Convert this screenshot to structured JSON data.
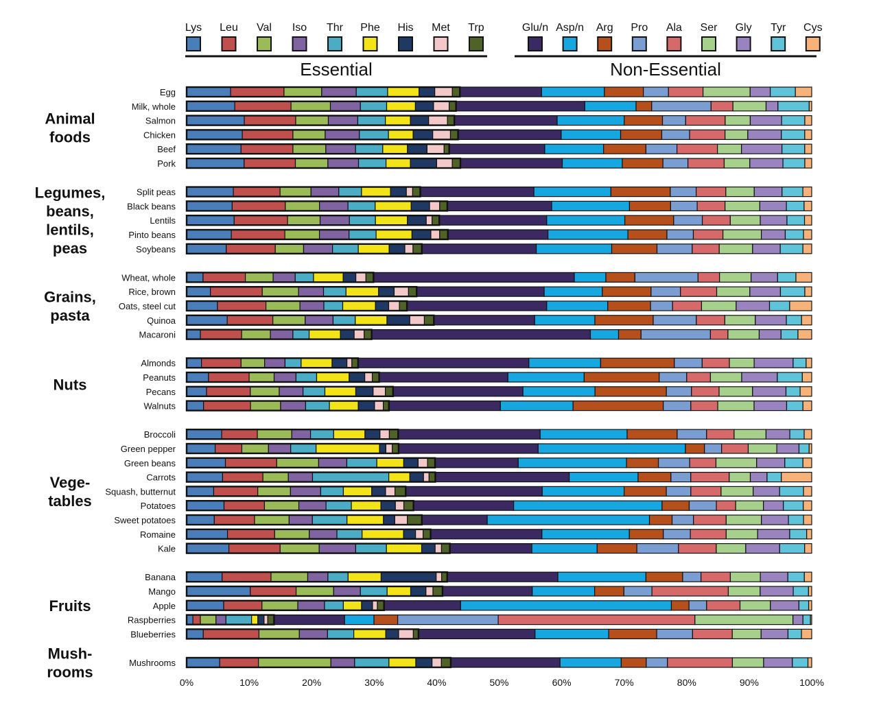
{
  "chart_data": {
    "type": "bar",
    "orientation": "horizontal",
    "stacked": true,
    "normalized_percent": true,
    "grid": false,
    "legend_placement": "top",
    "xlim": [
      0,
      100
    ],
    "x_ticks": [
      "0%",
      "10%",
      "20%",
      "30%",
      "40%",
      "50%",
      "60%",
      "70%",
      "80%",
      "90%",
      "100%"
    ],
    "legend_groups": [
      {
        "label": "Essential",
        "series": [
          "Lys",
          "Leu",
          "Val",
          "Iso",
          "Thr",
          "Phe",
          "His",
          "Met",
          "Trp"
        ]
      },
      {
        "label": "Non-Essential",
        "series": [
          "Glu/n",
          "Asp/n",
          "Arg",
          "Pro",
          "Ala",
          "Ser",
          "Gly",
          "Tyr",
          "Cys"
        ]
      }
    ],
    "series": [
      {
        "name": "Lys",
        "color": "#4a7ebb"
      },
      {
        "name": "Leu",
        "color": "#c0504d"
      },
      {
        "name": "Val",
        "color": "#9bbb59"
      },
      {
        "name": "Iso",
        "color": "#8064a2"
      },
      {
        "name": "Thr",
        "color": "#4bacc6"
      },
      {
        "name": "Phe",
        "color": "#f2e418"
      },
      {
        "name": "His",
        "color": "#1f3864"
      },
      {
        "name": "Met",
        "color": "#f2c8c8"
      },
      {
        "name": "Trp",
        "color": "#4f6228"
      },
      {
        "name": "Glu/n",
        "color": "#3b2a62"
      },
      {
        "name": "Asp/n",
        "color": "#16a6e0"
      },
      {
        "name": "Arg",
        "color": "#b5501c"
      },
      {
        "name": "Pro",
        "color": "#7a9dd2"
      },
      {
        "name": "Ala",
        "color": "#d66a6a"
      },
      {
        "name": "Ser",
        "color": "#a8d08d"
      },
      {
        "name": "Gly",
        "color": "#9a84bf"
      },
      {
        "name": "Tyr",
        "color": "#5fc3d9"
      },
      {
        "name": "Cys",
        "color": "#f7b27a"
      }
    ],
    "groups": [
      {
        "label": "Animal\nfoods",
        "items": [
          {
            "name": "Egg",
            "values": [
              7,
              8.5,
              6,
              5.5,
              5,
              5,
              2.5,
              2.8,
              1.2,
              13,
              10,
              6.2,
              4,
              5.5,
              7.5,
              3.2,
              4,
              2.6
            ]
          },
          {
            "name": "Milk, whole",
            "values": [
              7.7,
              9,
              6.3,
              4.8,
              4.2,
              4.6,
              2.9,
              2.5,
              1.1,
              20.6,
              8.2,
              2.5,
              9.5,
              3.5,
              5.3,
              1.9,
              5,
              0.4
            ]
          },
          {
            "name": "Salmon",
            "values": [
              9.2,
              8.2,
              5.2,
              4.7,
              4.4,
              4,
              2.9,
              3,
              1.1,
              16.4,
              10.7,
              6.1,
              3.7,
              6.3,
              4,
              5,
              3.7,
              1.1
            ]
          },
          {
            "name": "Chicken",
            "values": [
              8.8,
              8,
              5.1,
              5.4,
              4.6,
              3.9,
              3.1,
              2.8,
              1.2,
              16.3,
              9.4,
              6.5,
              4.4,
              5.6,
              3.6,
              5.3,
              3.7,
              1.1
            ]
          },
          {
            "name": "Beef",
            "values": [
              8.6,
              8.2,
              5.2,
              4.7,
              4.3,
              3.9,
              3.1,
              2.7,
              0.8,
              15.1,
              9.3,
              6.7,
              4.9,
              6.4,
              3.8,
              6.4,
              3.6,
              1.1
            ]
          },
          {
            "name": "Pork",
            "values": [
              9.2,
              8.2,
              5.2,
              4.9,
              4.4,
              3.9,
              4.2,
              2.5,
              1.3,
              16.3,
              9.6,
              6.5,
              4,
              5.8,
              4.1,
              5.3,
              3.5,
              1.1
            ]
          }
        ]
      },
      {
        "label": "Legumes,\nbeans,\nlentils,\npeas",
        "items": [
          {
            "name": "Split peas",
            "values": [
              7.4,
              7.4,
              4.9,
              4.4,
              3.6,
              4.6,
              2.5,
              1,
              1.2,
              18,
              12.2,
              9.4,
              4.1,
              4.7,
              4.5,
              4.4,
              3.3,
              1.4
            ]
          },
          {
            "name": "Black beans",
            "values": [
              7.2,
              8.4,
              5.4,
              4.5,
              4.3,
              5.7,
              2.9,
              1.6,
              1.2,
              16.5,
              12.3,
              6.5,
              4.2,
              4.4,
              5.5,
              4.2,
              2.8,
              1.2
            ]
          },
          {
            "name": "Lentils",
            "values": [
              7.3,
              8.2,
              5,
              4.5,
              4,
              4.9,
              2.9,
              0.9,
              1.1,
              16.5,
              12,
              7.5,
              4.4,
              4.3,
              4.6,
              4.1,
              2.7,
              1.1
            ]
          },
          {
            "name": "Pinto beans",
            "values": [
              7.1,
              8.5,
              5.5,
              4.7,
              4.3,
              5.7,
              3,
              1.4,
              1.3,
              15.9,
              12.7,
              6.2,
              4.2,
              4.7,
              6.1,
              3.8,
              2.9,
              1.3
            ]
          },
          {
            "name": "Soybeans",
            "values": [
              6.3,
              7.8,
              4.5,
              4.6,
              4.1,
              4.9,
              2.5,
              1.3,
              1.4,
              18.2,
              12,
              7.2,
              5.6,
              4.3,
              5.3,
              4.4,
              3.6,
              1.4
            ]
          }
        ]
      },
      {
        "label": "Grains,\npasta",
        "items": [
          {
            "name": "Wheat, whole",
            "values": [
              2.6,
              6.7,
              4.4,
              3.5,
              2.9,
              4.7,
              2,
              1.6,
              1.2,
              31.8,
              5,
              4.6,
              10,
              3.4,
              5,
              4.2,
              2.9,
              2.5
            ]
          },
          {
            "name": "Rice, brown",
            "values": [
              3.8,
              8.3,
              5.8,
              4,
              3.6,
              5.2,
              2.5,
              2.3,
              1.3,
              20.4,
              9.3,
              7.8,
              4.7,
              5.8,
              5.3,
              4.9,
              3.9,
              1.1
            ]
          },
          {
            "name": "Oats, steel cut",
            "values": [
              4.9,
              7.7,
              5.4,
              3.8,
              3,
              5.2,
              2.1,
              1.7,
              1.2,
              22.2,
              9.7,
              6.8,
              3.5,
              4.6,
              5.5,
              5.3,
              3.2,
              3.5
            ]
          },
          {
            "name": "Quinoa",
            "values": [
              6.4,
              7.2,
              5.1,
              4.4,
              3.5,
              5,
              3.6,
              2.3,
              1.5,
              15.9,
              9.5,
              9.2,
              6.8,
              4.5,
              4.8,
              4.9,
              2.4,
              1.6
            ]
          },
          {
            "name": "Macaroni",
            "values": [
              2.2,
              6.6,
              4.6,
              3.6,
              2.6,
              5,
              2.2,
              1.6,
              1.2,
              35,
              4.5,
              3.6,
              11.1,
              2.8,
              5,
              3.5,
              2.7,
              2.2
            ]
          }
        ]
      },
      {
        "label": "Nuts",
        "items": [
          {
            "name": "Almonds",
            "values": [
              2.4,
              6.4,
              3.8,
              3.3,
              2.6,
              5,
              2.4,
              0.8,
              1,
              27.6,
              11.6,
              11.9,
              4.5,
              4.4,
              4,
              6.3,
              2.1,
              0.9
            ]
          },
          {
            "name": "Peanuts",
            "values": [
              3.5,
              6.5,
              4,
              3.5,
              3.3,
              5.2,
              2.5,
              1.2,
              1.1,
              20.6,
              12.2,
              12,
              4.4,
              3.8,
              5,
              5.7,
              4,
              1.5
            ]
          },
          {
            "name": "Pecans",
            "values": [
              3.1,
              6.8,
              4.5,
              3.7,
              3.4,
              4.8,
              2.7,
              1.9,
              1.2,
              20.2,
              11.2,
              11.1,
              3.9,
              4.3,
              5.2,
              5.2,
              2.2,
              1.8
            ]
          },
          {
            "name": "Walnuts",
            "values": [
              2.7,
              7.5,
              4.8,
              4,
              3.8,
              4.6,
              2.6,
              1.4,
              0.9,
              17.8,
              11.6,
              14.4,
              4.4,
              4.3,
              5.8,
              5.2,
              2.6,
              1.4
            ]
          }
        ]
      },
      {
        "label": "Vege-\ntables",
        "items": [
          {
            "name": "Broccoli",
            "values": [
              5.6,
              5.7,
              5.5,
              3,
              3.7,
              5,
              2.4,
              1.5,
              1.4,
              22.7,
              13.9,
              8,
              4.7,
              4.4,
              5.1,
              3.8,
              2.3,
              1.2
            ]
          },
          {
            "name": "Green pepper",
            "values": [
              4.5,
              4.2,
              4.2,
              3.5,
              4,
              10,
              1,
              1,
              1,
              22,
              23.2,
              3,
              2.7,
              4.2,
              4.5,
              3.5,
              1.6,
              0.4
            ]
          },
          {
            "name": "Green beans",
            "values": [
              6.2,
              8.2,
              6.7,
              4.5,
              4.8,
              4.3,
              2.3,
              1.5,
              1.2,
              13.3,
              17.3,
              5.1,
              5,
              4.2,
              6.5,
              4.5,
              2.9,
              1.4
            ]
          },
          {
            "name": "Carrots",
            "values": [
              5.8,
              6.5,
              4.1,
              3.9,
              12.3,
              3.4,
              2.2,
              0.9,
              1,
              21.6,
              11.1,
              5.3,
              3.2,
              6.2,
              3.4,
              2.7,
              2.3,
              4.9
            ]
          },
          {
            "name": "Squash, butternut",
            "values": [
              4.3,
              7,
              5.2,
              4.8,
              3.6,
              4.5,
              2.2,
              1.5,
              1.7,
              21.7,
              13,
              6.7,
              3.9,
              4.8,
              5.1,
              4.2,
              3.8,
              1.3
            ]
          },
          {
            "name": "Potatoes",
            "values": [
              6.2,
              6.7,
              5.7,
              4.5,
              4.2,
              4.9,
              2.4,
              1.4,
              1.6,
              16.6,
              24.6,
              4.5,
              4.5,
              3.2,
              4.6,
              3.3,
              3.3,
              1.4
            ]
          },
          {
            "name": "Sweet potatoes",
            "values": [
              4.4,
              6.4,
              5.5,
              3.7,
              5.5,
              5.8,
              1.8,
              2,
              2.3,
              10.4,
              25.8,
              3.6,
              3.4,
              5.2,
              5.6,
              4.3,
              2.4,
              1.3
            ]
          },
          {
            "name": "Romaine",
            "values": [
              6.5,
              7.5,
              5.5,
              4.4,
              4,
              6.6,
              1.9,
              1.2,
              1.2,
              17.7,
              13.9,
              5.4,
              4.3,
              5.7,
              5,
              5.1,
              2.7,
              0.8
            ]
          },
          {
            "name": "Kale",
            "values": [
              6.6,
              8,
              6.1,
              5.7,
              4.8,
              5.5,
              2.1,
              1,
              1.3,
              12.8,
              10.2,
              6.2,
              6.5,
              5.9,
              4.6,
              5.3,
              3.9,
              1.1
            ]
          }
        ]
      },
      {
        "label": "Fruits",
        "items": [
          {
            "name": "Banana",
            "values": [
              5.8,
              8,
              6,
              3.3,
              3.3,
              5.4,
              9,
              0.9,
              0.9,
              18.1,
              14.4,
              6,
              3,
              4.8,
              4.9,
              4.5,
              2.7,
              1.2
            ]
          },
          {
            "name": "Mango",
            "values": [
              10,
              7.2,
              5.9,
              4.2,
              4.2,
              3.7,
              2.4,
              1.1,
              1.5,
              14.1,
              9.8,
              4.6,
              4.4,
              12,
              5,
              5.2,
              2.4,
              0.5
            ]
          },
          {
            "name": "Apple",
            "values": [
              6.1,
              6.3,
              5.9,
              4.4,
              3.1,
              3,
              1.8,
              0.8,
              1.1,
              12.6,
              34.7,
              2.9,
              2.9,
              5.5,
              5,
              4.7,
              1.6,
              0.5
            ]
          },
          {
            "name": "Raspberries",
            "values": [
              1,
              1.2,
              2.5,
              1.6,
              4.1,
              1,
              1,
              0.6,
              1,
              11.3,
              4.7,
              3.8,
              16.1,
              31.5,
              15.7,
              1.6,
              1.2,
              0.2
            ]
          },
          {
            "name": "Blueberries",
            "values": [
              2.6,
              8.7,
              6.3,
              4.4,
              4.1,
              5,
              2,
              2.3,
              0.8,
              18.2,
              11.5,
              7.5,
              5.6,
              6.2,
              4.5,
              4.2,
              2.1,
              1.6
            ]
          }
        ]
      },
      {
        "label": "Mush-\nrooms",
        "items": [
          {
            "name": "Mushrooms",
            "values": [
              5.3,
              6.2,
              11.6,
              3.8,
              5.5,
              4.3,
              2.6,
              1.5,
              1.5,
              17.5,
              9.8,
              4,
              3.4,
              10.4,
              5,
              4.6,
              2.5,
              0.6
            ]
          }
        ]
      }
    ]
  }
}
